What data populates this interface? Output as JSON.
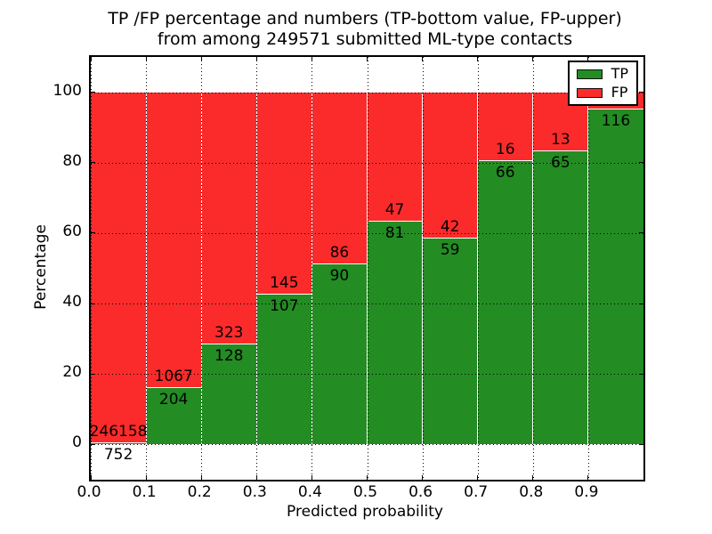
{
  "title": {
    "line1": "TP /FP percentage and numbers (TP-bottom value, FP-upper)",
    "line2": "from among 249571 submitted ML-type contacts"
  },
  "axes": {
    "xlabel": "Predicted probability",
    "ylabel": "Percentage",
    "xticks": [
      "0.0",
      "0.1",
      "0.2",
      "0.3",
      "0.4",
      "0.5",
      "0.6",
      "0.7",
      "0.8",
      "0.9"
    ],
    "yticks": [
      "0",
      "20",
      "40",
      "60",
      "80",
      "100"
    ]
  },
  "legend": {
    "items": [
      {
        "label": "TP",
        "color": "#238c23"
      },
      {
        "label": "FP",
        "color": "#fb2b2b"
      }
    ]
  },
  "colors": {
    "tp_green": "#238c23",
    "fp_red": "#fb2b2b",
    "grid": "#000000",
    "frame": "#000000"
  },
  "chart_data": {
    "type": "bar",
    "stacked": true,
    "title": "TP /FP percentage and numbers (TP-bottom value, FP-upper) from among 249571 submitted ML-type contacts",
    "xlabel": "Predicted probability",
    "ylabel": "Percentage",
    "xlim": [
      0.0,
      1.0
    ],
    "ylim": [
      -10,
      110
    ],
    "grid": true,
    "grid_style": "dotted",
    "legend_position": "upper right",
    "bin_width": 0.1,
    "categories": [
      "0.0-0.1",
      "0.1-0.2",
      "0.2-0.3",
      "0.3-0.4",
      "0.4-0.5",
      "0.5-0.6",
      "0.6-0.7",
      "0.7-0.8",
      "0.8-0.9",
      "0.9-1.0"
    ],
    "series": [
      {
        "name": "TP",
        "color": "#238c23",
        "counts": [
          752,
          204,
          128,
          107,
          90,
          81,
          59,
          66,
          65,
          116
        ],
        "pct": [
          0.3,
          16.05,
          28.38,
          42.46,
          51.14,
          63.28,
          58.42,
          80.49,
          83.33,
          95.08
        ]
      },
      {
        "name": "FP",
        "color": "#fb2b2b",
        "counts": [
          246158,
          1067,
          323,
          145,
          86,
          47,
          42,
          16,
          13,
          null
        ],
        "pct": [
          99.7,
          83.95,
          71.62,
          57.54,
          48.86,
          36.72,
          41.58,
          19.51,
          16.67,
          4.92
        ]
      }
    ],
    "bar_labels": {
      "fp": [
        "246158",
        "1067",
        "323",
        "145",
        "86",
        "47",
        "42",
        "16",
        "13",
        ""
      ],
      "tp": [
        "752",
        "204",
        "128",
        "107",
        "90",
        "81",
        "59",
        "66",
        "65",
        "116"
      ]
    }
  }
}
